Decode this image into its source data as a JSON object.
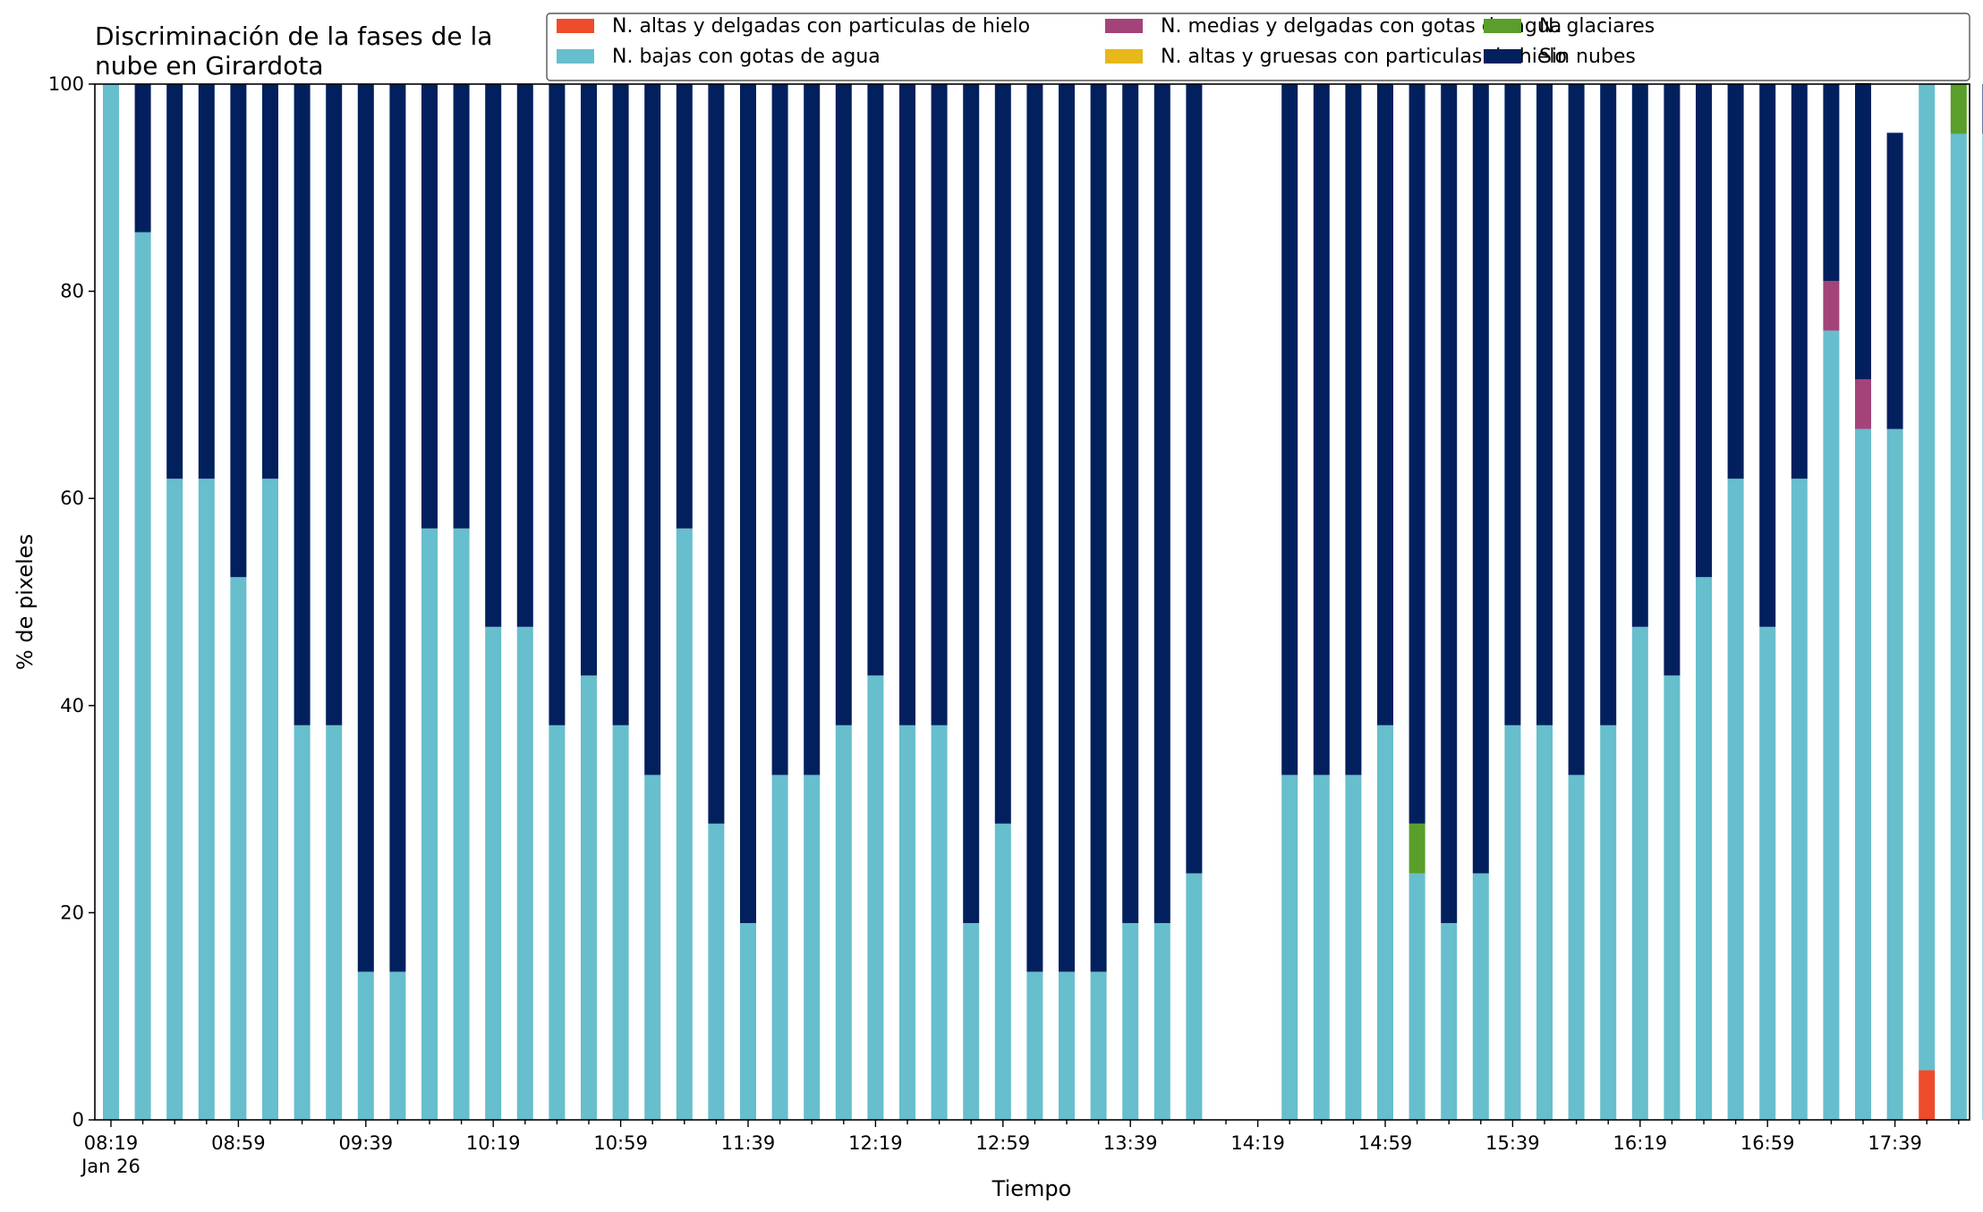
{
  "chart_data": {
    "type": "bar",
    "stacked": true,
    "title_lines": [
      "Discriminación de la fases de la",
      "nube en Girardota"
    ],
    "xlabel": "Tiempo",
    "ylabel": "% de pixeles",
    "ylim": [
      0,
      100
    ],
    "yticks": [
      0,
      20,
      40,
      60,
      80,
      100
    ],
    "x_interval_minutes": 10,
    "x_start": "08:19",
    "x_end": "17:49",
    "xtick_labels": [
      "08:19",
      "08:59",
      "09:39",
      "10:19",
      "10:59",
      "11:39",
      "12:19",
      "12:59",
      "13:39",
      "14:19",
      "14:59",
      "15:39",
      "16:19",
      "16:59",
      "17:39"
    ],
    "xtick_sublabel": "Jan 26",
    "grid": false,
    "legend_placement": "top-right",
    "series": [
      {
        "name": "N. altas y delgadas con particulas de hielo",
        "color": "#ee4b2b",
        "values": [
          0,
          0,
          0,
          0,
          0,
          0,
          0,
          0,
          0,
          0,
          0,
          0,
          0,
          0,
          0,
          0,
          0,
          0,
          0,
          0,
          0,
          0,
          0,
          0,
          0,
          0,
          0,
          0,
          0,
          0,
          0,
          0,
          0,
          0,
          0,
          0,
          0,
          0,
          0,
          0,
          0,
          0,
          0,
          0,
          0,
          0,
          0,
          0,
          0,
          0,
          0,
          0,
          0,
          0,
          0,
          0,
          0,
          4.8,
          0,
          0
        ]
      },
      {
        "name": "N. altas y gruesas con particulas de hielo",
        "color": "#e6b819",
        "values": [
          0,
          0,
          0,
          0,
          0,
          0,
          0,
          0,
          0,
          0,
          0,
          0,
          0,
          0,
          0,
          0,
          0,
          0,
          0,
          0,
          0,
          0,
          0,
          0,
          0,
          0,
          0,
          0,
          0,
          0,
          0,
          0,
          0,
          0,
          0,
          0,
          0,
          0,
          0,
          0,
          0,
          0,
          0,
          0,
          0,
          0,
          0,
          0,
          0,
          0,
          0,
          0,
          0,
          0,
          0,
          0,
          0,
          0,
          0,
          0
        ]
      },
      {
        "name": "N. bajas con gotas de agua",
        "color": "#67becc",
        "values": [
          100,
          85.7,
          61.9,
          61.9,
          52.4,
          61.9,
          38.1,
          38.1,
          14.3,
          14.3,
          57.1,
          57.1,
          47.6,
          47.6,
          38.1,
          42.9,
          38.1,
          33.3,
          57.1,
          28.6,
          19.0,
          33.3,
          33.3,
          38.1,
          42.9,
          38.1,
          38.1,
          19.0,
          28.6,
          14.3,
          14.3,
          14.3,
          19.0,
          19.0,
          23.8,
          0,
          0,
          33.3,
          33.3,
          33.3,
          38.1,
          23.8,
          19.0,
          23.8,
          38.1,
          38.1,
          33.3,
          38.1,
          47.6,
          42.9,
          52.4,
          61.9,
          47.6,
          61.9,
          76.2,
          66.7,
          66.7,
          95.2,
          95.2,
          0
        ]
      },
      {
        "name": "N. glaciares",
        "color": "#5a9e2b",
        "values": [
          0,
          0,
          0,
          0,
          0,
          0,
          0,
          0,
          0,
          0,
          0,
          0,
          0,
          0,
          0,
          0,
          0,
          0,
          0,
          0,
          0,
          0,
          0,
          0,
          0,
          0,
          0,
          0,
          0,
          0,
          0,
          0,
          0,
          0,
          0,
          0,
          0,
          0,
          0,
          0,
          0,
          4.8,
          0,
          0,
          0,
          0,
          0,
          0,
          0,
          0,
          0,
          0,
          0,
          0,
          0,
          0,
          0,
          0,
          4.8,
          0
        ]
      },
      {
        "name": "N. medias y delgadas con gotas de agua",
        "color": "#a3437a",
        "values": [
          0,
          0,
          0,
          0,
          0,
          0,
          0,
          0,
          0,
          0,
          0,
          0,
          0,
          0,
          0,
          0,
          0,
          0,
          0,
          0,
          0,
          0,
          0,
          0,
          0,
          0,
          0,
          0,
          0,
          0,
          0,
          0,
          0,
          0,
          0,
          0,
          0,
          0,
          0,
          0,
          0,
          0,
          0,
          0,
          0,
          0,
          0,
          0,
          0,
          0,
          0,
          0,
          0,
          0,
          4.8,
          4.8,
          0,
          0,
          0,
          0
        ]
      },
      {
        "name": "Sin nubes",
        "color": "#03205e",
        "values": [
          0,
          14.3,
          38.1,
          38.1,
          47.6,
          38.1,
          61.9,
          61.9,
          85.7,
          85.7,
          42.9,
          42.9,
          52.4,
          52.4,
          61.9,
          57.1,
          61.9,
          66.7,
          42.9,
          71.4,
          81.0,
          66.7,
          66.7,
          61.9,
          57.1,
          61.9,
          61.9,
          81.0,
          71.4,
          85.7,
          85.7,
          85.7,
          81.0,
          81.0,
          76.2,
          0,
          0,
          66.7,
          66.7,
          66.7,
          61.9,
          71.4,
          81.0,
          76.2,
          61.9,
          61.9,
          66.7,
          61.9,
          52.4,
          57.1,
          47.6,
          38.1,
          52.4,
          38.1,
          19.0,
          28.6,
          28.6,
          0,
          0,
          0
        ]
      }
    ],
    "note_series_last_bar_low": 95.2,
    "note_series_last_bar_high": 4.8
  }
}
